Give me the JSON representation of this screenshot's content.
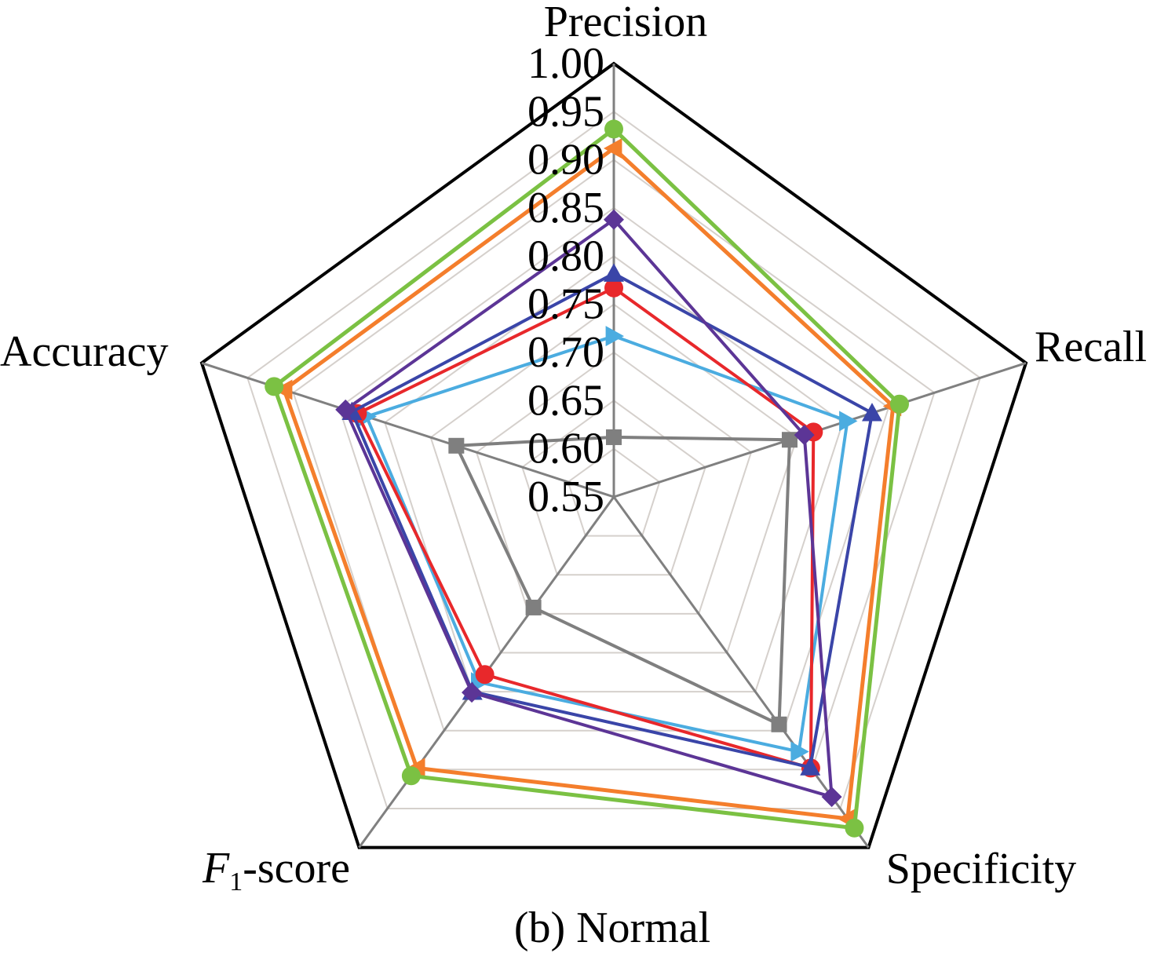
{
  "chart_data": {
    "type": "radar",
    "caption": "(b) Normal",
    "axes": [
      "Precision",
      "Recall",
      "Specificity",
      "F1-score",
      "Accuracy"
    ],
    "axis_labels": [
      {
        "main": "Precision",
        "sub": ""
      },
      {
        "main": "Recall",
        "sub": ""
      },
      {
        "main": "Specificity",
        "sub": ""
      },
      {
        "main": "F",
        "sub": "1",
        "rest": "-score"
      },
      {
        "main": "Accuracy",
        "sub": ""
      }
    ],
    "rlim": [
      0.55,
      1.0
    ],
    "ticks": [
      "0.55",
      "0.60",
      "0.65",
      "0.70",
      "0.75",
      "0.80",
      "0.85",
      "0.90",
      "0.95",
      "1.00"
    ],
    "grid": true,
    "legend": "none",
    "series": [
      {
        "color": "#7f7f7f",
        "marker": "square",
        "values": [
          0.612,
          0.742,
          0.842,
          0.692,
          0.722
        ]
      },
      {
        "color": "#4bace0",
        "marker": "triangle-right",
        "values": [
          0.717,
          0.805,
          0.877,
          0.788,
          0.82
        ]
      },
      {
        "color": "#e8282b",
        "marker": "circle",
        "values": [
          0.767,
          0.768,
          0.898,
          0.778,
          0.83
        ]
      },
      {
        "color": "#3a45a8",
        "marker": "triangle-up",
        "values": [
          0.782,
          0.832,
          0.897,
          0.8,
          0.836
        ]
      },
      {
        "color": "#5c3596",
        "marker": "diamond",
        "values": [
          0.838,
          0.758,
          0.935,
          0.801,
          0.843
        ]
      },
      {
        "color": "#f47e2c",
        "marker": "triangle-left",
        "values": [
          0.912,
          0.855,
          0.963,
          0.898,
          0.91
        ]
      },
      {
        "color": "#7bc143",
        "marker": "circle",
        "values": [
          0.932,
          0.862,
          0.975,
          0.908,
          0.921
        ]
      }
    ]
  }
}
